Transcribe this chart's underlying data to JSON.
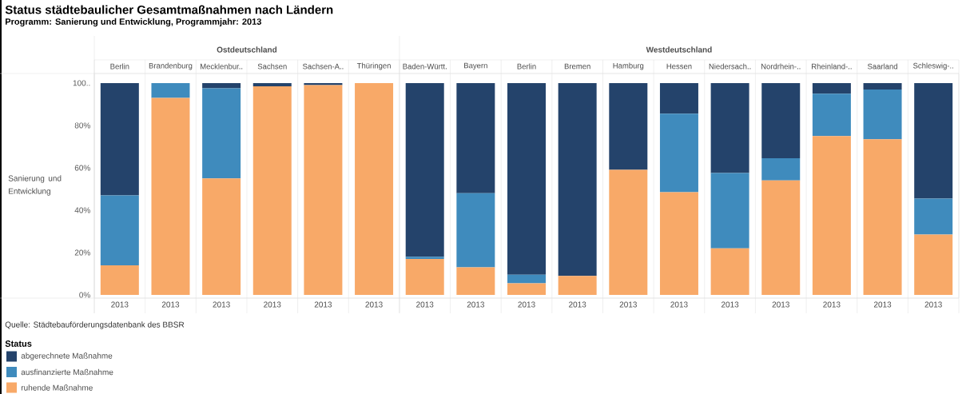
{
  "chart_data": {
    "type": "bar",
    "stacked": true,
    "title": "Status städtebaulicher Gesamtmaßnahmen nach Ländern",
    "subtitle": "Programm: Sanierung und Entwicklung, Programmjahr: 2013",
    "ylabel": "Sanierung und Entwicklung",
    "legend_title": "Status",
    "legend": "bottom left",
    "categories": [
      "Berlin",
      "Brandenburg",
      "Mecklenbur..",
      "Sachsen",
      "Sachsen-A..",
      "Thüringen",
      "Baden-Württ.",
      "Bayern",
      "Berlin",
      "Bremen",
      "Hamburg",
      "Hessen",
      "Niedersach..",
      "Nordrhein-..",
      "Rheinland-..",
      "Saarland",
      "Schleswig-.."
    ],
    "series": [
      {
        "name": "ruhende Maßnahme",
        "color": "#f8a968",
        "values": [
          14,
          93,
          55,
          98.5,
          99,
          100,
          17,
          13,
          5.5,
          9,
          59,
          48.5,
          22,
          54,
          75,
          73.5,
          28.5
        ]
      },
      {
        "name": "ausfinanzierte Maßnahme",
        "color": "#3f8bbd",
        "values": [
          33,
          7,
          42.5,
          0,
          0,
          0,
          1,
          35,
          4,
          0,
          0,
          37,
          35.5,
          10.5,
          20,
          23.5,
          17
        ]
      },
      {
        "name": "abgerechnete Maßnahme",
        "color": "#24436b",
        "values": [
          53,
          0,
          2.5,
          1.5,
          1,
          0,
          82,
          52,
          90.5,
          91,
          41,
          14.5,
          42.5,
          35.5,
          5,
          3,
          54.5
        ]
      }
    ],
    "ylim": [
      -1.5,
      104.5
    ],
    "yticks": [
      {
        "value": 0,
        "label": "0%"
      },
      {
        "value": 20,
        "label": "20%"
      },
      {
        "value": 40,
        "label": "40%"
      },
      {
        "value": 60,
        "label": "60%"
      },
      {
        "value": 80,
        "label": "80%"
      },
      {
        "value": 100,
        "label": "100.."
      }
    ],
    "annotations": [
      "Ostdeutschland",
      "Westdeutschland",
      "2013",
      "Quelle: Städtebauförderungsdatenbank des BBSR"
    ]
  }
}
